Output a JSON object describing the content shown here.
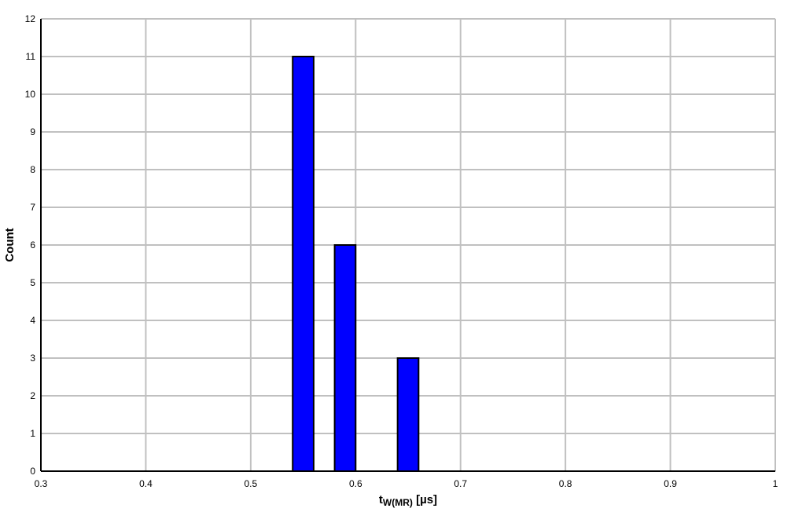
{
  "chart_data": {
    "type": "bar",
    "title": "",
    "xlabel": "t",
    "xlabel_subscript": "W(MR)",
    "xlabel_unit": "[µs]",
    "ylabel": "Count",
    "xlim": [
      0.3,
      1.0
    ],
    "ylim": [
      0,
      12
    ],
    "x_ticks": [
      "0.3",
      "0.4",
      "0.5",
      "0.6",
      "0.7",
      "0.8",
      "0.9",
      "1"
    ],
    "y_ticks": [
      "0",
      "1",
      "2",
      "3",
      "4",
      "5",
      "6",
      "7",
      "8",
      "9",
      "10",
      "11",
      "12"
    ],
    "grid": true,
    "bars": [
      {
        "x_start": 0.54,
        "x_end": 0.56,
        "value": 11
      },
      {
        "x_start": 0.58,
        "x_end": 0.6,
        "value": 6
      },
      {
        "x_start": 0.64,
        "x_end": 0.66,
        "value": 3
      }
    ],
    "colors": {
      "bar": "#0000ff",
      "bar_edge": "#000000",
      "grid": "#c0c0c0"
    }
  }
}
